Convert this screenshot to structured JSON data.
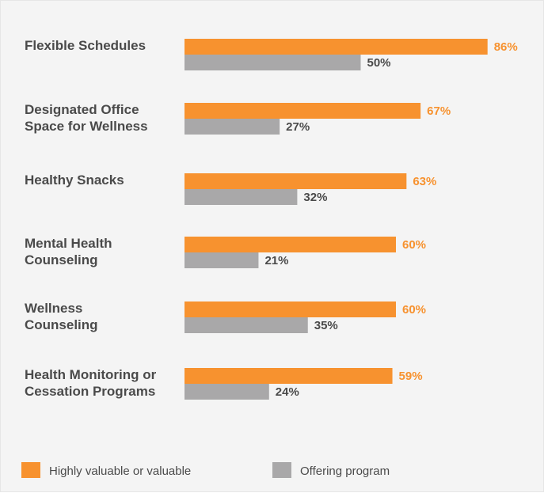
{
  "chart_data": {
    "type": "bar",
    "orientation": "horizontal",
    "title": "",
    "xlabel": "",
    "ylabel": "",
    "xlim": [
      0,
      100
    ],
    "grid": false,
    "legend_position": "bottom",
    "categories": [
      [
        "Flexible Schedules"
      ],
      [
        "Designated Office",
        "Space for Wellness"
      ],
      [
        "Healthy Snacks"
      ],
      [
        "Mental Health",
        "Counseling"
      ],
      [
        "Wellness",
        "Counseling"
      ],
      [
        "Health Monitoring or",
        "Cessation Programs"
      ]
    ],
    "series": [
      {
        "name": "Highly valuable or valuable",
        "color": "#f7922f",
        "label_color": "#f7922f",
        "values": [
          86,
          67,
          63,
          60,
          60,
          59
        ],
        "labels": [
          "86%",
          "67%",
          "63%",
          "60%",
          "60%",
          "59%"
        ]
      },
      {
        "name": "Offering program",
        "color": "#a9a8a9",
        "label_color": "#4a4a4a",
        "values": [
          50,
          27,
          32,
          21,
          35,
          24
        ],
        "labels": [
          "50%",
          "27%",
          "32%",
          "21%",
          "35%",
          "24%"
        ]
      }
    ]
  }
}
